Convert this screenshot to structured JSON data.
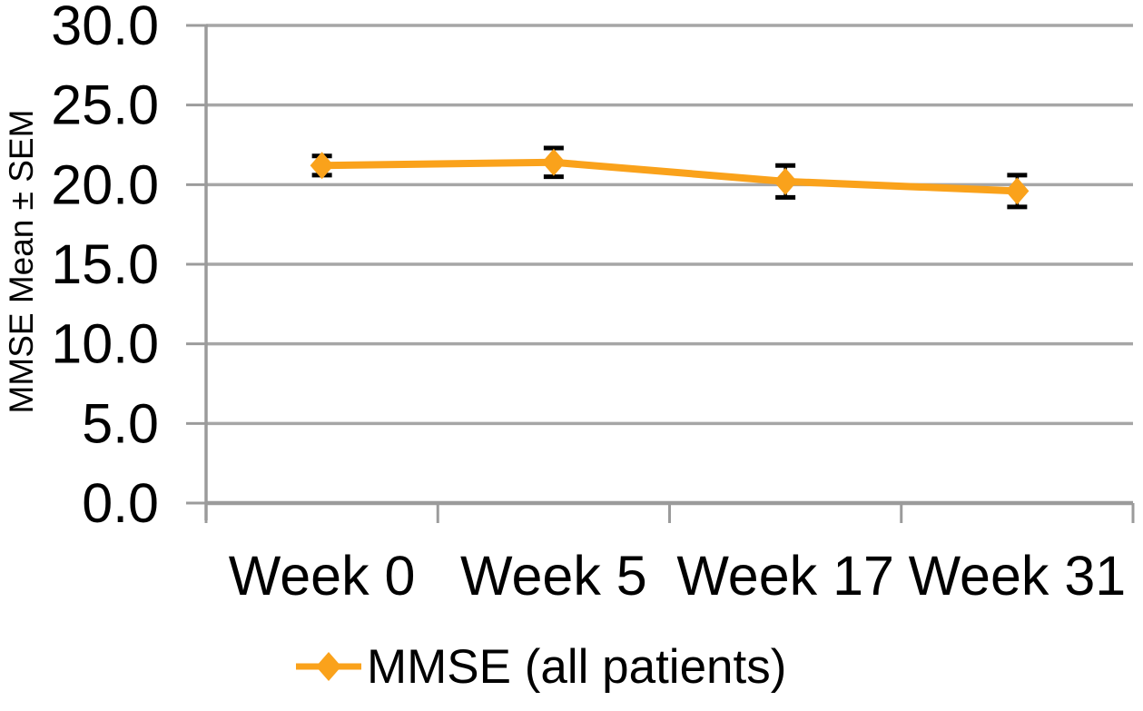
{
  "chart_data": {
    "type": "line",
    "title": "",
    "ylabel": "MMSE Mean ± SEM",
    "xlabel": "",
    "categories": [
      "Week 0",
      "Week 5",
      "Week 17",
      "Week 31"
    ],
    "series": [
      {
        "name": "MMSE (all patients)",
        "values": [
          21.2,
          21.4,
          20.2,
          19.6
        ],
        "sem": [
          0.6,
          0.9,
          1.0,
          1.0
        ],
        "color": "#FAA21B",
        "marker": "diamond",
        "error_bars": true
      }
    ],
    "ylim": [
      0,
      30
    ],
    "ytick_step": 5,
    "ytick_labels": [
      "30.0",
      "25.0",
      "20.0",
      "15.0",
      "10.0",
      "5.0",
      "0.0"
    ],
    "grid": "horizontal",
    "legend_position": "bottom",
    "colors": {
      "grid": "#A6A6A6",
      "axis": "#9B9B9B",
      "error_bar": "#000000",
      "text": "#000000",
      "background": "#FFFFFF"
    }
  },
  "legend": {
    "series_label": "MMSE (all patients)"
  }
}
